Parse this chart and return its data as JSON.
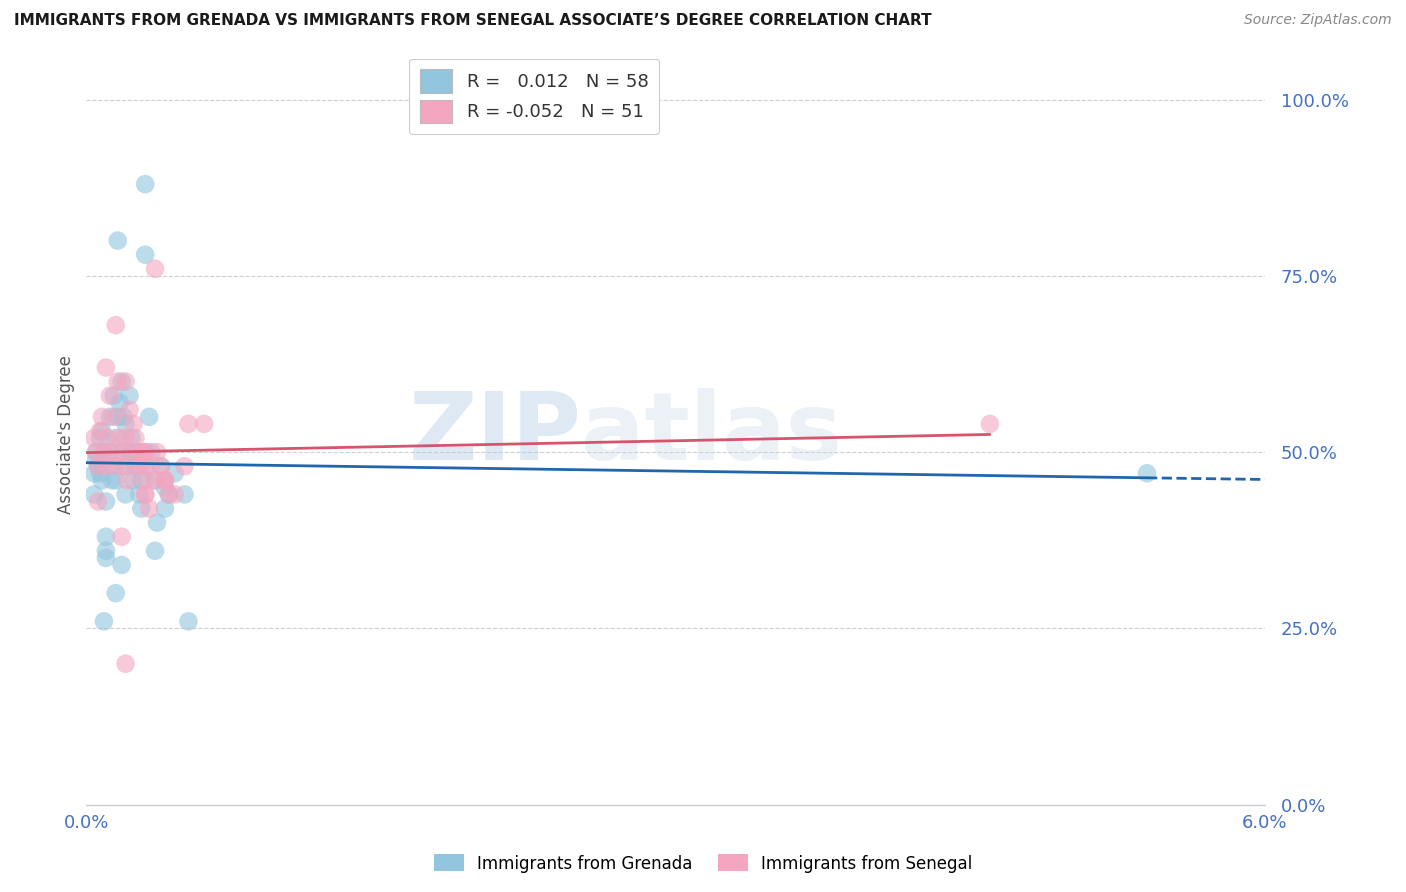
{
  "title": "IMMIGRANTS FROM GRENADA VS IMMIGRANTS FROM SENEGAL ASSOCIATE’S DEGREE CORRELATION CHART",
  "source": "Source: ZipAtlas.com",
  "ylabel": "Associate's Degree",
  "ytick_labels": [
    "0.0%",
    "25.0%",
    "50.0%",
    "75.0%",
    "100.0%"
  ],
  "ytick_values": [
    0.0,
    0.25,
    0.5,
    0.75,
    1.0
  ],
  "xtick_labels": [
    "0.0%",
    "6.0%"
  ],
  "xtick_values": [
    0.0,
    0.06
  ],
  "xmin": 0.0,
  "xmax": 0.06,
  "ymin": 0.0,
  "ymax": 1.05,
  "legend_blue_r": "0.012",
  "legend_blue_n": "58",
  "legend_pink_r": "-0.052",
  "legend_pink_n": "51",
  "label_grenada": "Immigrants from Grenada",
  "label_senegal": "Immigrants from Senegal",
  "color_blue": "#92c5de",
  "color_pink": "#f4a6c0",
  "color_blue_line": "#2166ac",
  "color_pink_line": "#d6546e",
  "color_axis_label": "#4472c4",
  "background": "#ffffff",
  "watermark_zip": "ZIP",
  "watermark_atlas": "atlas",
  "grenada_x": [
    0.0004,
    0.0004,
    0.0005,
    0.0005,
    0.0006,
    0.0007,
    0.0007,
    0.0008,
    0.0008,
    0.0009,
    0.001,
    0.001,
    0.001,
    0.001,
    0.0012,
    0.0012,
    0.0013,
    0.0013,
    0.0014,
    0.0015,
    0.0015,
    0.0016,
    0.0016,
    0.0017,
    0.0018,
    0.0018,
    0.0019,
    0.002,
    0.002,
    0.002,
    0.0022,
    0.0022,
    0.0023,
    0.0024,
    0.0025,
    0.0026,
    0.0027,
    0.0028,
    0.003,
    0.003,
    0.003,
    0.0032,
    0.0033,
    0.0035,
    0.0036,
    0.0038,
    0.004,
    0.004,
    0.0042,
    0.0045,
    0.005,
    0.0052,
    0.0028,
    0.0015,
    0.0018,
    0.0009,
    0.054,
    0.0035
  ],
  "grenada_y": [
    0.47,
    0.44,
    0.5,
    0.49,
    0.48,
    0.52,
    0.47,
    0.53,
    0.46,
    0.5,
    0.38,
    0.43,
    0.35,
    0.36,
    0.55,
    0.5,
    0.48,
    0.46,
    0.58,
    0.52,
    0.46,
    0.8,
    0.55,
    0.57,
    0.6,
    0.5,
    0.55,
    0.54,
    0.48,
    0.44,
    0.58,
    0.5,
    0.52,
    0.46,
    0.48,
    0.5,
    0.44,
    0.42,
    0.88,
    0.78,
    0.48,
    0.55,
    0.5,
    0.46,
    0.4,
    0.48,
    0.45,
    0.42,
    0.44,
    0.47,
    0.44,
    0.26,
    0.46,
    0.3,
    0.34,
    0.26,
    0.47,
    0.36
  ],
  "senegal_x": [
    0.0004,
    0.0005,
    0.0006,
    0.0007,
    0.0008,
    0.0009,
    0.001,
    0.001,
    0.0011,
    0.0012,
    0.0013,
    0.0014,
    0.0015,
    0.0015,
    0.0016,
    0.0017,
    0.0018,
    0.0019,
    0.002,
    0.002,
    0.0021,
    0.0022,
    0.0023,
    0.0024,
    0.0025,
    0.0026,
    0.0028,
    0.003,
    0.003,
    0.0032,
    0.0033,
    0.0035,
    0.0036,
    0.0038,
    0.004,
    0.0042,
    0.0028,
    0.003,
    0.0035,
    0.004,
    0.0045,
    0.005,
    0.0052,
    0.0018,
    0.046,
    0.004,
    0.003,
    0.003,
    0.002,
    0.0006,
    0.006
  ],
  "senegal_y": [
    0.52,
    0.5,
    0.48,
    0.53,
    0.55,
    0.5,
    0.62,
    0.48,
    0.52,
    0.58,
    0.5,
    0.55,
    0.48,
    0.68,
    0.6,
    0.52,
    0.5,
    0.48,
    0.6,
    0.52,
    0.46,
    0.56,
    0.5,
    0.54,
    0.52,
    0.48,
    0.5,
    0.44,
    0.46,
    0.42,
    0.48,
    0.46,
    0.5,
    0.48,
    0.46,
    0.44,
    0.48,
    0.5,
    0.76,
    0.46,
    0.44,
    0.48,
    0.54,
    0.38,
    0.54,
    0.46,
    0.44,
    0.5,
    0.2,
    0.43,
    0.54
  ]
}
